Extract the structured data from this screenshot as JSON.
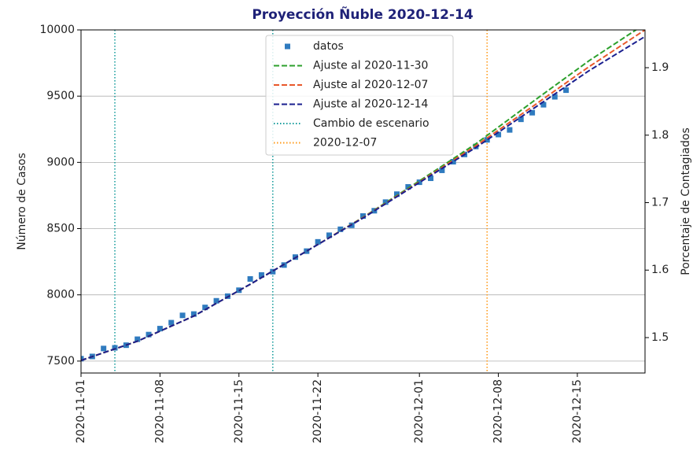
{
  "chart_data": {
    "type": "line",
    "title": "Proyección Ñuble 2020-12-14",
    "ylabel": "Número de Casos",
    "y2label": "Porcentaje de Contagiados",
    "xlim": [
      "2020-11-01",
      "2020-12-21"
    ],
    "xticks": [
      "2020-11-01",
      "2020-11-08",
      "2020-11-15",
      "2020-11-22",
      "2020-12-01",
      "2020-12-08",
      "2020-12-15"
    ],
    "ylim": [
      7410,
      10000
    ],
    "yticks": [
      7500,
      8000,
      8500,
      9000,
      9500,
      10000
    ],
    "y2lim": [
      1.4475,
      1.956
    ],
    "y2ticks": [
      1.5,
      1.6,
      1.7,
      1.8,
      1.9
    ],
    "grid": true,
    "legend": "upper center",
    "series": [
      {
        "name": "datos",
        "color": "#2f7bbf",
        "style": "markers",
        "x": [
          "2020-11-01",
          "2020-11-02",
          "2020-11-03",
          "2020-11-04",
          "2020-11-05",
          "2020-11-06",
          "2020-11-07",
          "2020-11-08",
          "2020-11-09",
          "2020-11-10",
          "2020-11-11",
          "2020-11-12",
          "2020-11-13",
          "2020-11-14",
          "2020-11-15",
          "2020-11-16",
          "2020-11-17",
          "2020-11-18",
          "2020-11-19",
          "2020-11-20",
          "2020-11-21",
          "2020-11-22",
          "2020-11-23",
          "2020-11-24",
          "2020-11-25",
          "2020-11-26",
          "2020-11-27",
          "2020-11-28",
          "2020-11-29",
          "2020-11-30",
          "2020-12-01",
          "2020-12-02",
          "2020-12-03",
          "2020-12-04",
          "2020-12-05",
          "2020-12-06",
          "2020-12-07",
          "2020-12-08",
          "2020-12-09",
          "2020-12-10",
          "2020-12-11",
          "2020-12-12",
          "2020-12-13",
          "2020-12-14"
        ],
        "values": [
          7518,
          7535,
          7595,
          7600,
          7620,
          7665,
          7700,
          7745,
          7790,
          7845,
          7855,
          7905,
          7955,
          7990,
          8035,
          8120,
          8150,
          8175,
          8225,
          8285,
          8330,
          8400,
          8450,
          8495,
          8525,
          8595,
          8635,
          8700,
          8760,
          8815,
          8850,
          8880,
          8940,
          9005,
          9060,
          9120,
          9170,
          9210,
          9245,
          9325,
          9375,
          9435,
          9495,
          9545
        ]
      },
      {
        "name": "Ajuste al 2020-11-30",
        "color": "#2ca02c",
        "style": "dashed",
        "x": [
          "2020-11-01",
          "2020-11-06",
          "2020-11-11",
          "2020-11-16",
          "2020-11-21",
          "2020-11-26",
          "2020-12-01",
          "2020-12-06",
          "2020-12-11",
          "2020-12-16",
          "2020-12-21"
        ],
        "values": [
          7505,
          7650,
          7840,
          8080,
          8330,
          8585,
          8860,
          9140,
          9455,
          9765,
          10045
        ]
      },
      {
        "name": "Ajuste al 2020-12-07",
        "color": "#e8582a",
        "style": "dashed",
        "x": [
          "2020-11-01",
          "2020-11-06",
          "2020-11-11",
          "2020-11-16",
          "2020-11-21",
          "2020-11-26",
          "2020-12-01",
          "2020-12-06",
          "2020-12-11",
          "2020-12-16",
          "2020-12-21"
        ],
        "values": [
          7505,
          7650,
          7840,
          8080,
          8330,
          8583,
          8852,
          9125,
          9420,
          9720,
          10000
        ]
      },
      {
        "name": "Ajuste al 2020-12-14",
        "color": "#1a1f8f",
        "style": "dashed",
        "x": [
          "2020-11-01",
          "2020-11-06",
          "2020-11-11",
          "2020-11-16",
          "2020-11-21",
          "2020-11-26",
          "2020-12-01",
          "2020-12-06",
          "2020-12-11",
          "2020-12-16",
          "2020-12-21"
        ],
        "values": [
          7505,
          7650,
          7840,
          8080,
          8330,
          8580,
          8848,
          9112,
          9400,
          9690,
          9950
        ]
      }
    ],
    "vlines": [
      {
        "name": "Cambio de escenario",
        "color": "#1a9e9e",
        "x": [
          "2020-11-04",
          "2020-11-18"
        ]
      },
      {
        "name": "2020-12-07",
        "color": "#ff9a1a",
        "x": [
          "2020-12-07"
        ]
      }
    ]
  }
}
